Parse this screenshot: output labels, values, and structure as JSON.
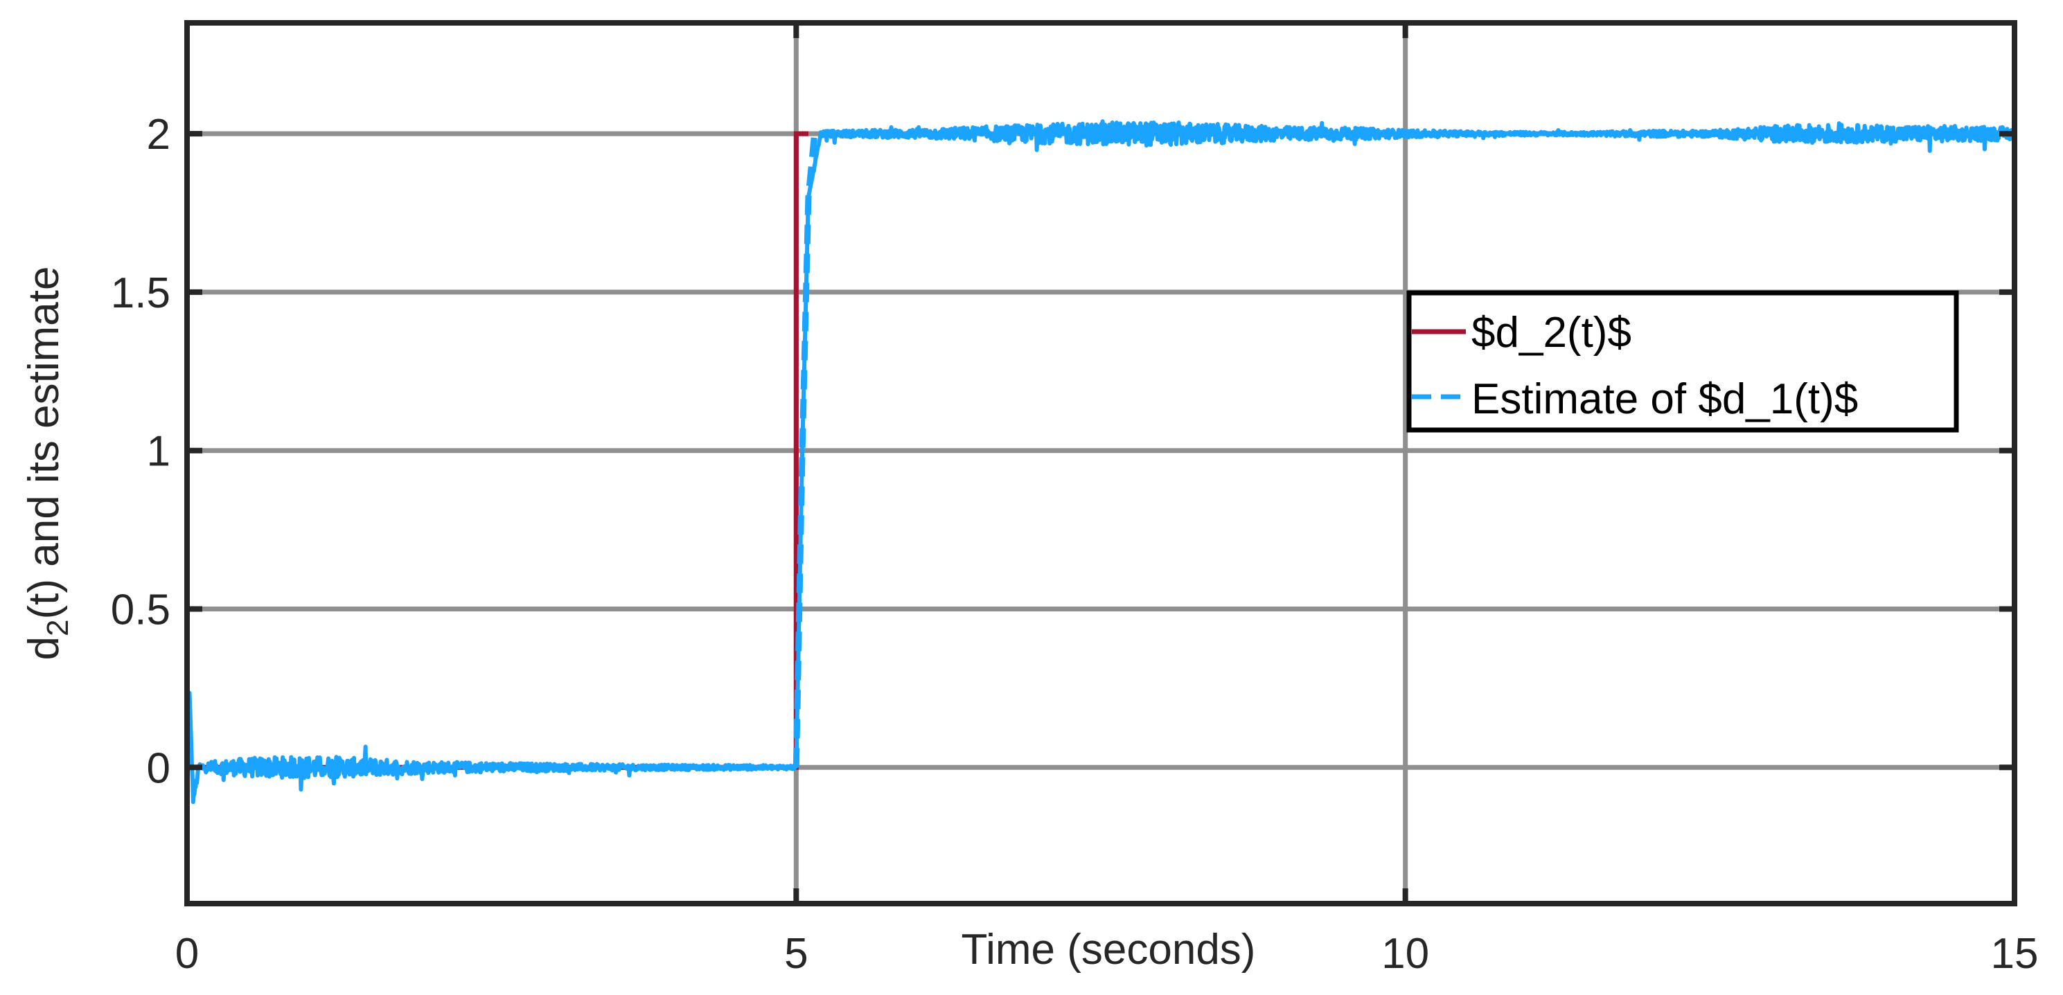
{
  "chart_data": {
    "type": "line",
    "title": "",
    "xlabel": "Time (seconds)",
    "ylabel": {
      "prefix": "d",
      "subscript": "2",
      "suffix": "(t) and its estimate"
    },
    "xlim": [
      0,
      15
    ],
    "ylim": [
      -0.43,
      2.35
    ],
    "xticks": [
      0,
      5,
      10,
      15
    ],
    "xtick_labels": [
      "0",
      "5",
      "10",
      "15"
    ],
    "yticks": [
      0,
      0.5,
      1,
      1.5,
      2
    ],
    "ytick_labels": [
      "0",
      "0.5",
      "1",
      "1.5",
      "2"
    ],
    "grid": true,
    "legend_position": "upper-right (inside)",
    "series": [
      {
        "name": "$d_2(t)$",
        "color": "#A2142F",
        "style": "solid",
        "x": [
          0,
          5,
          5,
          5.1
        ],
        "y": [
          0,
          0,
          2,
          2
        ]
      },
      {
        "name": "Estimate of $d_1(t)$",
        "color": "#1AA3FF",
        "style": "dashed, noisy",
        "x": [
          0,
          0.02,
          0.05,
          0.1,
          0.5,
          1,
          1.5,
          2,
          2.5,
          3,
          3.5,
          4,
          4.5,
          5,
          5.05,
          5.1,
          5.2,
          5.3,
          6,
          7,
          7.5,
          8,
          8.5,
          9,
          9.5,
          10,
          10.5,
          11,
          11.5,
          12,
          12.5,
          13,
          13.5,
          14,
          14.5,
          15
        ],
        "y": [
          0,
          0.23,
          -0.1,
          0.0,
          0.0,
          0.0,
          0.0,
          0.0,
          0.0,
          0.0,
          0.0,
          0.0,
          0.0,
          0.0,
          1.0,
          1.8,
          2.0,
          2.0,
          2.0,
          2.0,
          2.0,
          2.0,
          2.0,
          2.0,
          2.0,
          2.0,
          2.0,
          2.0,
          2.0,
          2.0,
          2.0,
          2.0,
          2.0,
          2.0,
          2.0,
          2.0
        ],
        "noise_amplitude": [
          0.012,
          0.012,
          0.012,
          0.015,
          0.03,
          0.035,
          0.028,
          0.018,
          0.015,
          0.012,
          0.01,
          0.008,
          0.008,
          0.006,
          0,
          0,
          0.008,
          0.01,
          0.015,
          0.03,
          0.035,
          0.038,
          0.03,
          0.022,
          0.02,
          0.012,
          0.008,
          0.006,
          0.006,
          0.01,
          0.01,
          0.025,
          0.03,
          0.025,
          0.025,
          0.02
        ]
      }
    ],
    "legend": {
      "entries": [
        "$d_2(t)$",
        "Estimate of $d_1(t)$"
      ]
    }
  }
}
